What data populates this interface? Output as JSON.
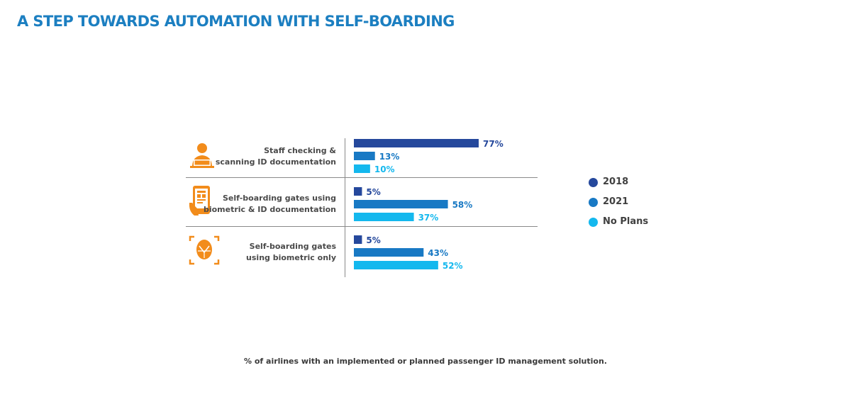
{
  "title": "A STEP TOWARDS AUTOMATION WITH SELF-BOARDING",
  "caption": "% of airlines with an implemented or planned passenger ID management solution.",
  "icons": [
    "staff-scanning-icon",
    "phone-boarding-pass-icon",
    "face-scan-icon"
  ],
  "colors": {
    "accent": "#1C7FC1",
    "icon": "#F28C1B",
    "s2018": "#25489C",
    "s2021": "#1879C4",
    "noplans": "#14B8EE"
  },
  "chart_data": {
    "type": "bar",
    "orientation": "horizontal",
    "categories": [
      "Staff checking & scanning ID documentation",
      "Self-boarding gates using biometric & ID documentation",
      "Self-boarding gates using biometric only"
    ],
    "category_lines": [
      [
        "Staff checking &",
        "scanning ID documentation"
      ],
      [
        "Self-boarding gates using",
        "biometric & ID documentation"
      ],
      [
        "Self-boarding gates",
        "using biometric only"
      ]
    ],
    "series": [
      {
        "name": "2018",
        "color": "#25489C",
        "values": [
          77,
          5,
          5
        ],
        "labels": [
          "77%",
          "5%",
          "5%"
        ]
      },
      {
        "name": "2021",
        "color": "#1879C4",
        "values": [
          13,
          58,
          43
        ],
        "labels": [
          "13%",
          "58%",
          "43%"
        ]
      },
      {
        "name": "No Plans",
        "color": "#14B8EE",
        "values": [
          10,
          37,
          52
        ],
        "labels": [
          "10%",
          "37%",
          "52%"
        ]
      }
    ],
    "xlim": [
      0,
      100
    ],
    "legend_position": "right",
    "grid": false
  }
}
